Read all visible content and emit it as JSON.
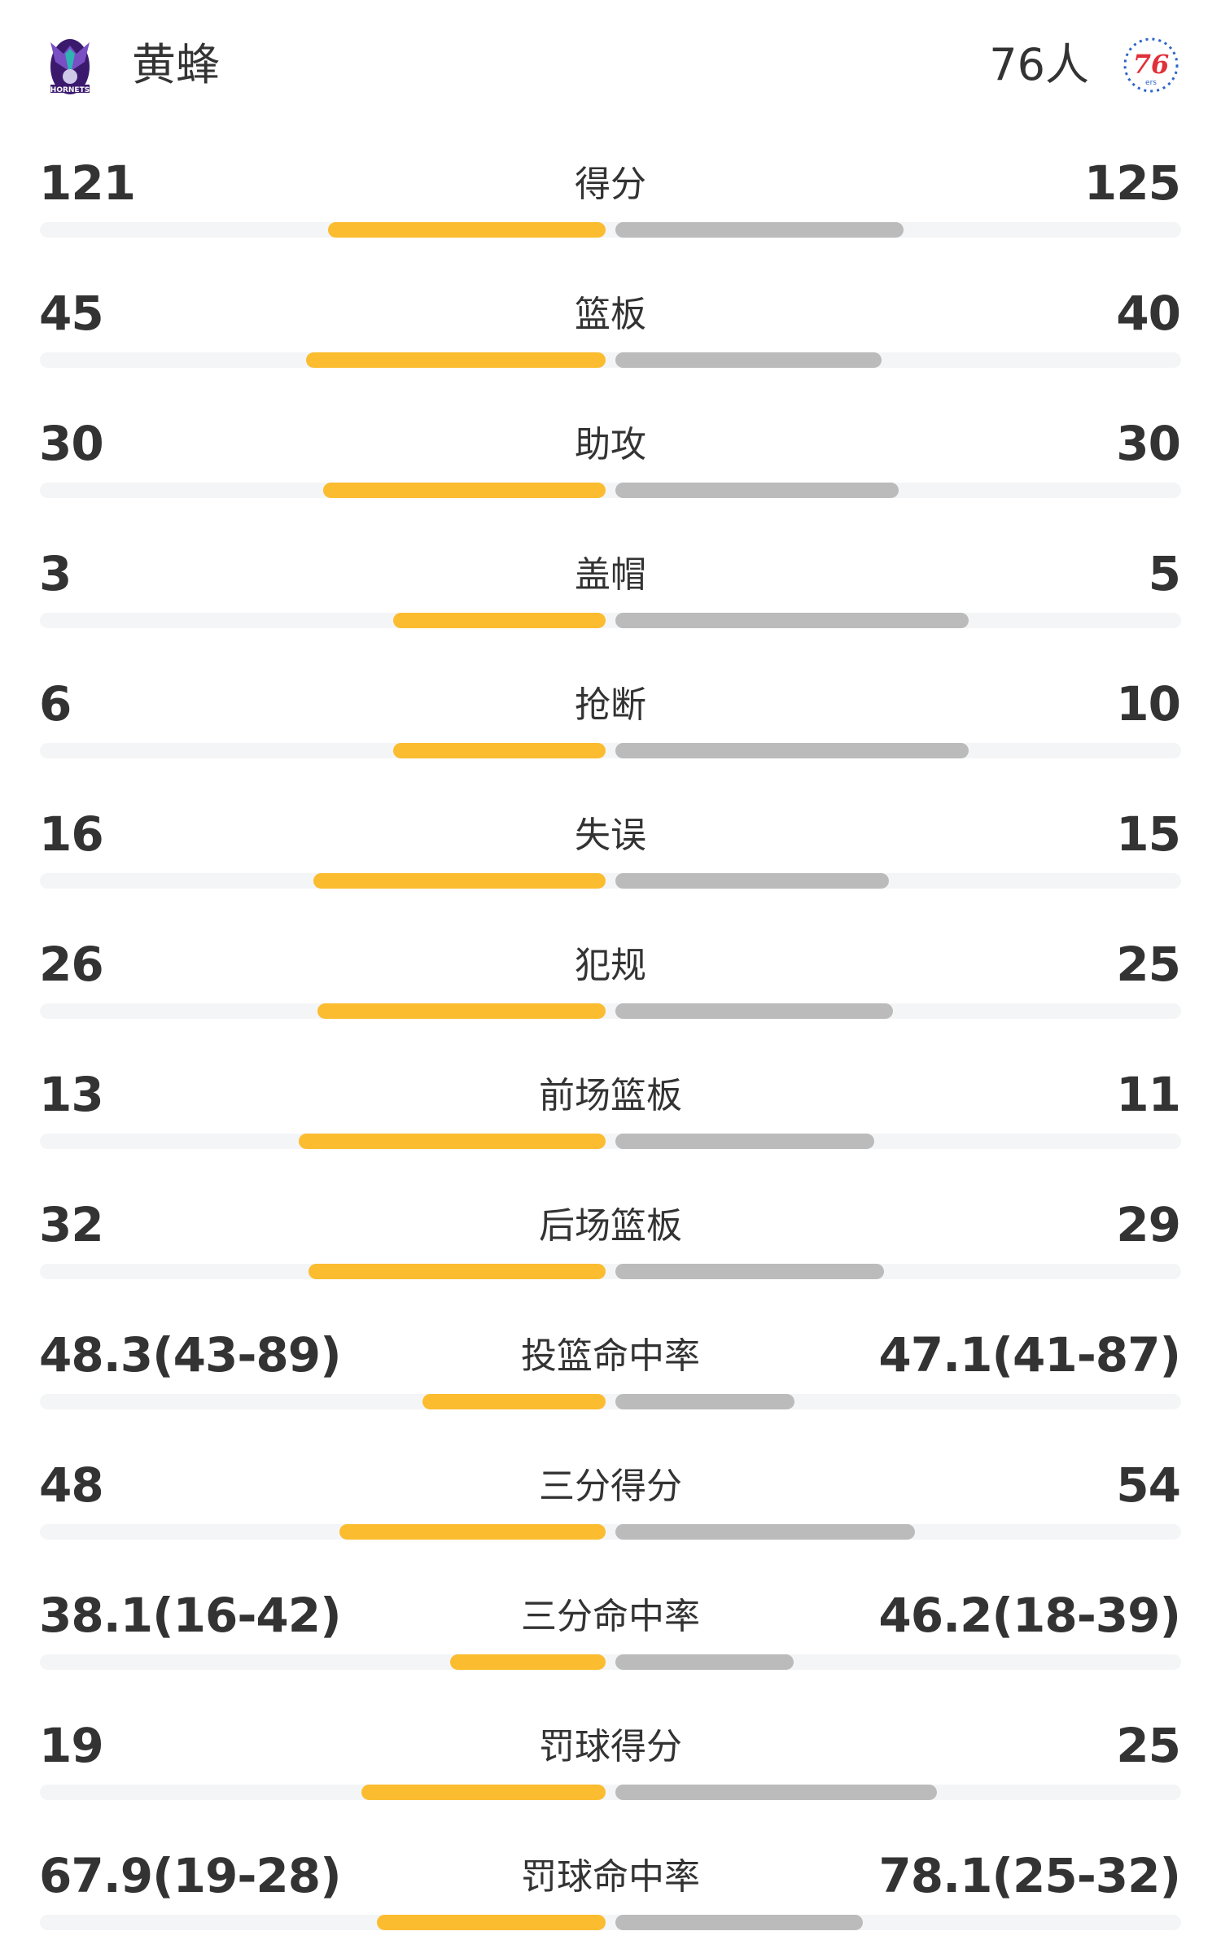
{
  "home": {
    "name": "黄蜂",
    "logo": "hornets-logo",
    "logo_text": "HORNETS",
    "color": "#fbbc30"
  },
  "away": {
    "name": "76人",
    "logo": "76ers-logo",
    "logo_text": "76",
    "color": "#bbbbbb"
  },
  "stats": [
    {
      "label": "得分",
      "home": "121",
      "away": "125",
      "home_fill": 0.491,
      "away_fill": 0.509
    },
    {
      "label": "篮板",
      "home": "45",
      "away": "40",
      "home_fill": 0.529,
      "away_fill": 0.471
    },
    {
      "label": "助攻",
      "home": "30",
      "away": "30",
      "home_fill": 0.5,
      "away_fill": 0.5
    },
    {
      "label": "盖帽",
      "home": "3",
      "away": "5",
      "home_fill": 0.375,
      "away_fill": 0.625
    },
    {
      "label": "抢断",
      "home": "6",
      "away": "10",
      "home_fill": 0.375,
      "away_fill": 0.625
    },
    {
      "label": "失误",
      "home": "16",
      "away": "15",
      "home_fill": 0.516,
      "away_fill": 0.484
    },
    {
      "label": "犯规",
      "home": "26",
      "away": "25",
      "home_fill": 0.51,
      "away_fill": 0.49
    },
    {
      "label": "前场篮板",
      "home": "13",
      "away": "11",
      "home_fill": 0.542,
      "away_fill": 0.458
    },
    {
      "label": "后场篮板",
      "home": "32",
      "away": "29",
      "home_fill": 0.525,
      "away_fill": 0.475
    },
    {
      "label": "投篮命中率",
      "home": "48.3(43-89)",
      "away": "47.1(41-87)",
      "home_fill": 0.324,
      "away_fill": 0.317
    },
    {
      "label": "三分得分",
      "home": "48",
      "away": "54",
      "home_fill": 0.47,
      "away_fill": 0.53
    },
    {
      "label": "三分命中率",
      "home": "38.1(16-42)",
      "away": "46.2(18-39)",
      "home_fill": 0.275,
      "away_fill": 0.315
    },
    {
      "label": "罚球得分",
      "home": "19",
      "away": "25",
      "home_fill": 0.432,
      "away_fill": 0.568
    },
    {
      "label": "罚球命中率",
      "home": "67.9(19-28)",
      "away": "78.1(25-32)",
      "home_fill": 0.405,
      "away_fill": 0.438
    }
  ]
}
